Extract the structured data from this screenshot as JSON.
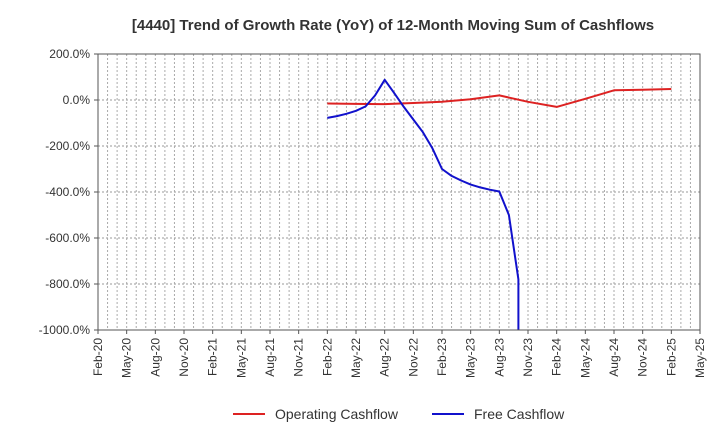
{
  "chart_data": {
    "type": "line",
    "title": "[4440]  Trend of Growth Rate (YoY) of 12-Month Moving Sum of Cashflows",
    "xlabel": "",
    "ylabel": "",
    "x_tick_labels": [
      "Feb-20",
      "May-20",
      "Aug-20",
      "Nov-20",
      "Feb-21",
      "May-21",
      "Aug-21",
      "Nov-21",
      "Feb-22",
      "May-22",
      "Aug-22",
      "Nov-22",
      "Feb-23",
      "May-23",
      "Aug-23",
      "Nov-23",
      "Feb-24",
      "May-24",
      "Aug-24",
      "Nov-24",
      "Feb-25",
      "May-25"
    ],
    "y_tick_labels": [
      "200.0%",
      "0.0%",
      "-200.0%",
      "-400.0%",
      "-600.0%",
      "-800.0%",
      "-1000.0%"
    ],
    "ylim": [
      -1000,
      200
    ],
    "grid": true,
    "legend_position": "bottom",
    "series": [
      {
        "name": "Operating Cashflow",
        "color": "#dd2222",
        "points": [
          {
            "x": "Feb-22",
            "y": -15
          },
          {
            "x": "May-22",
            "y": -17
          },
          {
            "x": "Aug-22",
            "y": -18
          },
          {
            "x": "Nov-22",
            "y": -13
          },
          {
            "x": "Feb-23",
            "y": -8
          },
          {
            "x": "May-23",
            "y": 3
          },
          {
            "x": "Aug-23",
            "y": 20
          },
          {
            "x": "Nov-23",
            "y": -8
          },
          {
            "x": "Feb-24",
            "y": -30
          },
          {
            "x": "May-24",
            "y": 5
          },
          {
            "x": "Aug-24",
            "y": 42
          },
          {
            "x": "Nov-24",
            "y": 45
          },
          {
            "x": "Feb-25",
            "y": 48
          }
        ]
      },
      {
        "name": "Free Cashflow",
        "color": "#1111cc",
        "points": [
          {
            "x": "Feb-22",
            "y": -78
          },
          {
            "x": "Mar-22",
            "y": -70
          },
          {
            "x": "Apr-22",
            "y": -60
          },
          {
            "x": "May-22",
            "y": -47
          },
          {
            "x": "Jun-22",
            "y": -28
          },
          {
            "x": "Jul-22",
            "y": 20
          },
          {
            "x": "Aug-22",
            "y": 88
          },
          {
            "x": "Sep-22",
            "y": 30
          },
          {
            "x": "Oct-22",
            "y": -30
          },
          {
            "x": "Nov-22",
            "y": -85
          },
          {
            "x": "Dec-22",
            "y": -140
          },
          {
            "x": "Jan-23",
            "y": -210
          },
          {
            "x": "Feb-23",
            "y": -300
          },
          {
            "x": "Mar-23",
            "y": -330
          },
          {
            "x": "Apr-23",
            "y": -350
          },
          {
            "x": "May-23",
            "y": -368
          },
          {
            "x": "Jun-23",
            "y": -380
          },
          {
            "x": "Jul-23",
            "y": -390
          },
          {
            "x": "Aug-23",
            "y": -398
          },
          {
            "x": "Sep-23",
            "y": -500
          },
          {
            "x": "Oct-23",
            "y": -780
          },
          {
            "x": "Oct-23",
            "y": -1000
          }
        ]
      }
    ]
  }
}
